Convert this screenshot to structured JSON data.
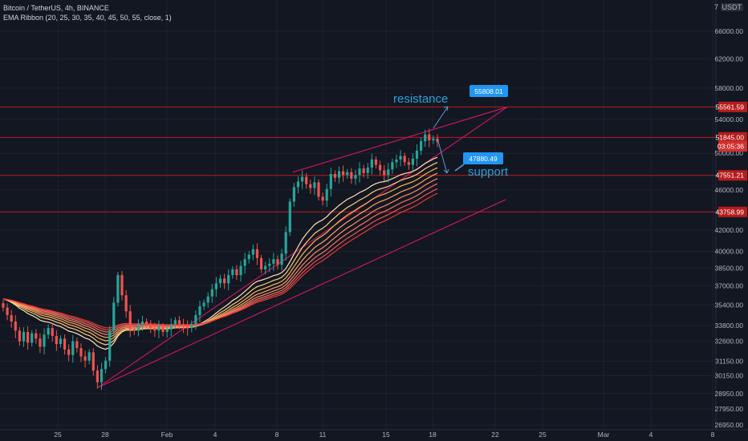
{
  "header": {
    "symbol_line": "Bitcoin / TetherUS, 4h, BINANCE",
    "indicator_line": "EMA Ribbon (20, 25, 30, 35, 40, 45, 50, 55, close, 1)",
    "currency": "USDT",
    "corner_value": "7"
  },
  "colors": {
    "background": "#131722",
    "up": "#26a69a",
    "down": "#ef5350",
    "level_line": "#b71c1c",
    "wedge_line": "#c2185b",
    "callout_blue": "#2196f3",
    "ribbon": [
      "#ffe0b2",
      "#ffcc80",
      "#ffb74d",
      "#ffa36c",
      "#ff8a65",
      "#f4745d",
      "#ef5350",
      "#e53935"
    ]
  },
  "chart_data": {
    "type": "candlestick",
    "title": "Bitcoin / TetherUS, 4h, BINANCE",
    "y_axis": {
      "scale": "log",
      "range": [
        26500,
        73000
      ],
      "tick_labels": [
        "66000.00",
        "62000.00",
        "58000.00",
        "54000.00",
        "50000.00",
        "46000.00",
        "42000.00",
        "40000.00",
        "38500.00",
        "37000.00",
        "35400.00",
        "33800.00",
        "32600.00",
        "31150.00",
        "30150.00",
        "28950.00",
        "27950.00",
        "26950.00"
      ]
    },
    "x_axis": {
      "tick_labels": [
        "25",
        "28",
        "Feb",
        "4",
        "8",
        "11",
        "15",
        "18",
        "22",
        "25",
        "Mar",
        "4",
        "8"
      ]
    },
    "price_levels": [
      {
        "label": "55561.59",
        "value": 55561.59,
        "color": "#b71c1c"
      },
      {
        "label": "51845.00",
        "value": 51845.0,
        "color": "#b71c1c"
      },
      {
        "label": "03:05:36",
        "value": 50800,
        "color": "#b71c1c"
      },
      {
        "label": "47551.21",
        "value": 47551.21,
        "color": "#b71c1c"
      },
      {
        "label": "43758.99",
        "value": 43758.99,
        "color": "#b71c1c"
      }
    ],
    "annotations": [
      {
        "text": "resistance",
        "color": "#26a3d8"
      },
      {
        "text": "support",
        "color": "#26a3d8"
      },
      {
        "text": "55808.01",
        "color": "#2196f3"
      },
      {
        "text": "47880.49",
        "color": "#2196f3"
      }
    ],
    "ema_ribbon_periods": [
      20,
      25,
      30,
      35,
      40,
      45,
      50,
      55
    ],
    "candles_approx_closes": [
      35200,
      34600,
      34100,
      33400,
      32600,
      33300,
      32500,
      33200,
      32800,
      32200,
      33100,
      33600,
      33000,
      32400,
      32800,
      32000,
      31600,
      32600,
      32100,
      31500,
      31200,
      31800,
      30500,
      29700,
      30600,
      31200,
      33400,
      35600,
      37900,
      36200,
      34900,
      33500,
      33400,
      33900,
      34100,
      33900,
      33600,
      33400,
      33700,
      33300,
      33500,
      33900,
      34200,
      33900,
      33700,
      33600,
      33900,
      34600,
      35300,
      35600,
      36100,
      36700,
      37200,
      37600,
      37200,
      37900,
      38400,
      37900,
      38700,
      39300,
      39700,
      40200,
      39400,
      38400,
      38700,
      38900,
      39300,
      38800,
      39800,
      41800,
      44800,
      46300,
      46900,
      47400,
      46600,
      46200,
      46800,
      45300,
      44900,
      46100,
      47700,
      47300,
      48000,
      47600,
      47900,
      47200,
      47600,
      48300,
      47800,
      48400,
      49300,
      48700,
      48100,
      47600,
      48200,
      49000,
      49300,
      49700,
      49000,
      48700,
      49400,
      50300,
      51400,
      52200,
      51500,
      51700,
      51300
    ]
  }
}
